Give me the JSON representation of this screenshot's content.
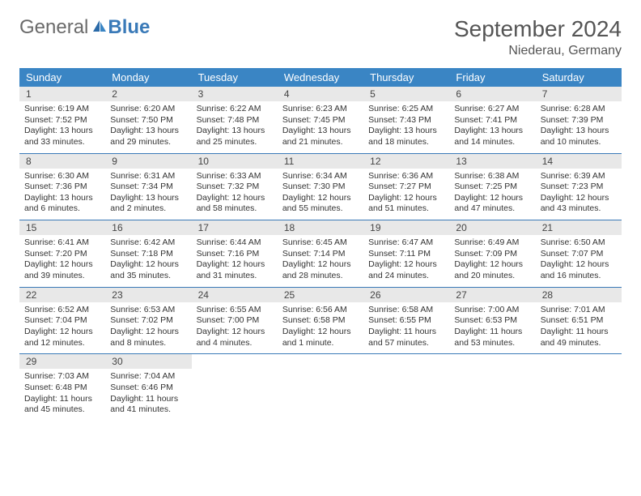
{
  "logo": {
    "general": "General",
    "blue": "Blue"
  },
  "title": "September 2024",
  "location": "Niederau, Germany",
  "colors": {
    "header_bg": "#3a85c4",
    "border": "#3a7ab8",
    "daynum_bg": "#e8e8e8",
    "text": "#333333",
    "title_text": "#555555"
  },
  "day_names": [
    "Sunday",
    "Monday",
    "Tuesday",
    "Wednesday",
    "Thursday",
    "Friday",
    "Saturday"
  ],
  "weeks": [
    {
      "nums": [
        "1",
        "2",
        "3",
        "4",
        "5",
        "6",
        "7"
      ],
      "cells": [
        {
          "sunrise": "Sunrise: 6:19 AM",
          "sunset": "Sunset: 7:52 PM",
          "daylight1": "Daylight: 13 hours",
          "daylight2": "and 33 minutes."
        },
        {
          "sunrise": "Sunrise: 6:20 AM",
          "sunset": "Sunset: 7:50 PM",
          "daylight1": "Daylight: 13 hours",
          "daylight2": "and 29 minutes."
        },
        {
          "sunrise": "Sunrise: 6:22 AM",
          "sunset": "Sunset: 7:48 PM",
          "daylight1": "Daylight: 13 hours",
          "daylight2": "and 25 minutes."
        },
        {
          "sunrise": "Sunrise: 6:23 AM",
          "sunset": "Sunset: 7:45 PM",
          "daylight1": "Daylight: 13 hours",
          "daylight2": "and 21 minutes."
        },
        {
          "sunrise": "Sunrise: 6:25 AM",
          "sunset": "Sunset: 7:43 PM",
          "daylight1": "Daylight: 13 hours",
          "daylight2": "and 18 minutes."
        },
        {
          "sunrise": "Sunrise: 6:27 AM",
          "sunset": "Sunset: 7:41 PM",
          "daylight1": "Daylight: 13 hours",
          "daylight2": "and 14 minutes."
        },
        {
          "sunrise": "Sunrise: 6:28 AM",
          "sunset": "Sunset: 7:39 PM",
          "daylight1": "Daylight: 13 hours",
          "daylight2": "and 10 minutes."
        }
      ]
    },
    {
      "nums": [
        "8",
        "9",
        "10",
        "11",
        "12",
        "13",
        "14"
      ],
      "cells": [
        {
          "sunrise": "Sunrise: 6:30 AM",
          "sunset": "Sunset: 7:36 PM",
          "daylight1": "Daylight: 13 hours",
          "daylight2": "and 6 minutes."
        },
        {
          "sunrise": "Sunrise: 6:31 AM",
          "sunset": "Sunset: 7:34 PM",
          "daylight1": "Daylight: 13 hours",
          "daylight2": "and 2 minutes."
        },
        {
          "sunrise": "Sunrise: 6:33 AM",
          "sunset": "Sunset: 7:32 PM",
          "daylight1": "Daylight: 12 hours",
          "daylight2": "and 58 minutes."
        },
        {
          "sunrise": "Sunrise: 6:34 AM",
          "sunset": "Sunset: 7:30 PM",
          "daylight1": "Daylight: 12 hours",
          "daylight2": "and 55 minutes."
        },
        {
          "sunrise": "Sunrise: 6:36 AM",
          "sunset": "Sunset: 7:27 PM",
          "daylight1": "Daylight: 12 hours",
          "daylight2": "and 51 minutes."
        },
        {
          "sunrise": "Sunrise: 6:38 AM",
          "sunset": "Sunset: 7:25 PM",
          "daylight1": "Daylight: 12 hours",
          "daylight2": "and 47 minutes."
        },
        {
          "sunrise": "Sunrise: 6:39 AM",
          "sunset": "Sunset: 7:23 PM",
          "daylight1": "Daylight: 12 hours",
          "daylight2": "and 43 minutes."
        }
      ]
    },
    {
      "nums": [
        "15",
        "16",
        "17",
        "18",
        "19",
        "20",
        "21"
      ],
      "cells": [
        {
          "sunrise": "Sunrise: 6:41 AM",
          "sunset": "Sunset: 7:20 PM",
          "daylight1": "Daylight: 12 hours",
          "daylight2": "and 39 minutes."
        },
        {
          "sunrise": "Sunrise: 6:42 AM",
          "sunset": "Sunset: 7:18 PM",
          "daylight1": "Daylight: 12 hours",
          "daylight2": "and 35 minutes."
        },
        {
          "sunrise": "Sunrise: 6:44 AM",
          "sunset": "Sunset: 7:16 PM",
          "daylight1": "Daylight: 12 hours",
          "daylight2": "and 31 minutes."
        },
        {
          "sunrise": "Sunrise: 6:45 AM",
          "sunset": "Sunset: 7:14 PM",
          "daylight1": "Daylight: 12 hours",
          "daylight2": "and 28 minutes."
        },
        {
          "sunrise": "Sunrise: 6:47 AM",
          "sunset": "Sunset: 7:11 PM",
          "daylight1": "Daylight: 12 hours",
          "daylight2": "and 24 minutes."
        },
        {
          "sunrise": "Sunrise: 6:49 AM",
          "sunset": "Sunset: 7:09 PM",
          "daylight1": "Daylight: 12 hours",
          "daylight2": "and 20 minutes."
        },
        {
          "sunrise": "Sunrise: 6:50 AM",
          "sunset": "Sunset: 7:07 PM",
          "daylight1": "Daylight: 12 hours",
          "daylight2": "and 16 minutes."
        }
      ]
    },
    {
      "nums": [
        "22",
        "23",
        "24",
        "25",
        "26",
        "27",
        "28"
      ],
      "cells": [
        {
          "sunrise": "Sunrise: 6:52 AM",
          "sunset": "Sunset: 7:04 PM",
          "daylight1": "Daylight: 12 hours",
          "daylight2": "and 12 minutes."
        },
        {
          "sunrise": "Sunrise: 6:53 AM",
          "sunset": "Sunset: 7:02 PM",
          "daylight1": "Daylight: 12 hours",
          "daylight2": "and 8 minutes."
        },
        {
          "sunrise": "Sunrise: 6:55 AM",
          "sunset": "Sunset: 7:00 PM",
          "daylight1": "Daylight: 12 hours",
          "daylight2": "and 4 minutes."
        },
        {
          "sunrise": "Sunrise: 6:56 AM",
          "sunset": "Sunset: 6:58 PM",
          "daylight1": "Daylight: 12 hours",
          "daylight2": "and 1 minute."
        },
        {
          "sunrise": "Sunrise: 6:58 AM",
          "sunset": "Sunset: 6:55 PM",
          "daylight1": "Daylight: 11 hours",
          "daylight2": "and 57 minutes."
        },
        {
          "sunrise": "Sunrise: 7:00 AM",
          "sunset": "Sunset: 6:53 PM",
          "daylight1": "Daylight: 11 hours",
          "daylight2": "and 53 minutes."
        },
        {
          "sunrise": "Sunrise: 7:01 AM",
          "sunset": "Sunset: 6:51 PM",
          "daylight1": "Daylight: 11 hours",
          "daylight2": "and 49 minutes."
        }
      ]
    },
    {
      "nums": [
        "29",
        "30",
        "",
        "",
        "",
        "",
        ""
      ],
      "cells": [
        {
          "sunrise": "Sunrise: 7:03 AM",
          "sunset": "Sunset: 6:48 PM",
          "daylight1": "Daylight: 11 hours",
          "daylight2": "and 45 minutes."
        },
        {
          "sunrise": "Sunrise: 7:04 AM",
          "sunset": "Sunset: 6:46 PM",
          "daylight1": "Daylight: 11 hours",
          "daylight2": "and 41 minutes."
        },
        null,
        null,
        null,
        null,
        null
      ]
    }
  ]
}
